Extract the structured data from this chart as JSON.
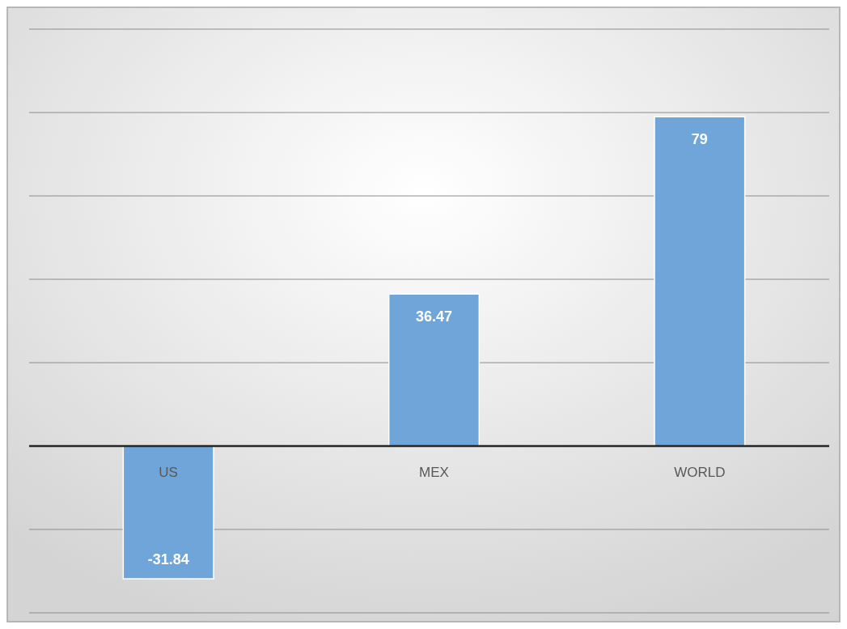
{
  "chart_data": {
    "type": "bar",
    "categories": [
      "US",
      "MEX",
      "WORLD"
    ],
    "values": [
      -31.84,
      36.47,
      79
    ],
    "color": "#6fa5d8",
    "data_labels": true,
    "ylim": [
      -40,
      100
    ],
    "yticks": [
      {
        "value": -40,
        "label": null
      },
      {
        "value": -20,
        "label": null
      },
      {
        "value": 0,
        "label": null
      },
      {
        "value": 20,
        "label": null
      },
      {
        "value": 40,
        "label": null
      },
      {
        "value": 60,
        "label": null
      },
      {
        "value": 80,
        "label": null
      },
      {
        "value": 100,
        "label": null
      }
    ],
    "grid": "y",
    "tick_labels": "x"
  }
}
